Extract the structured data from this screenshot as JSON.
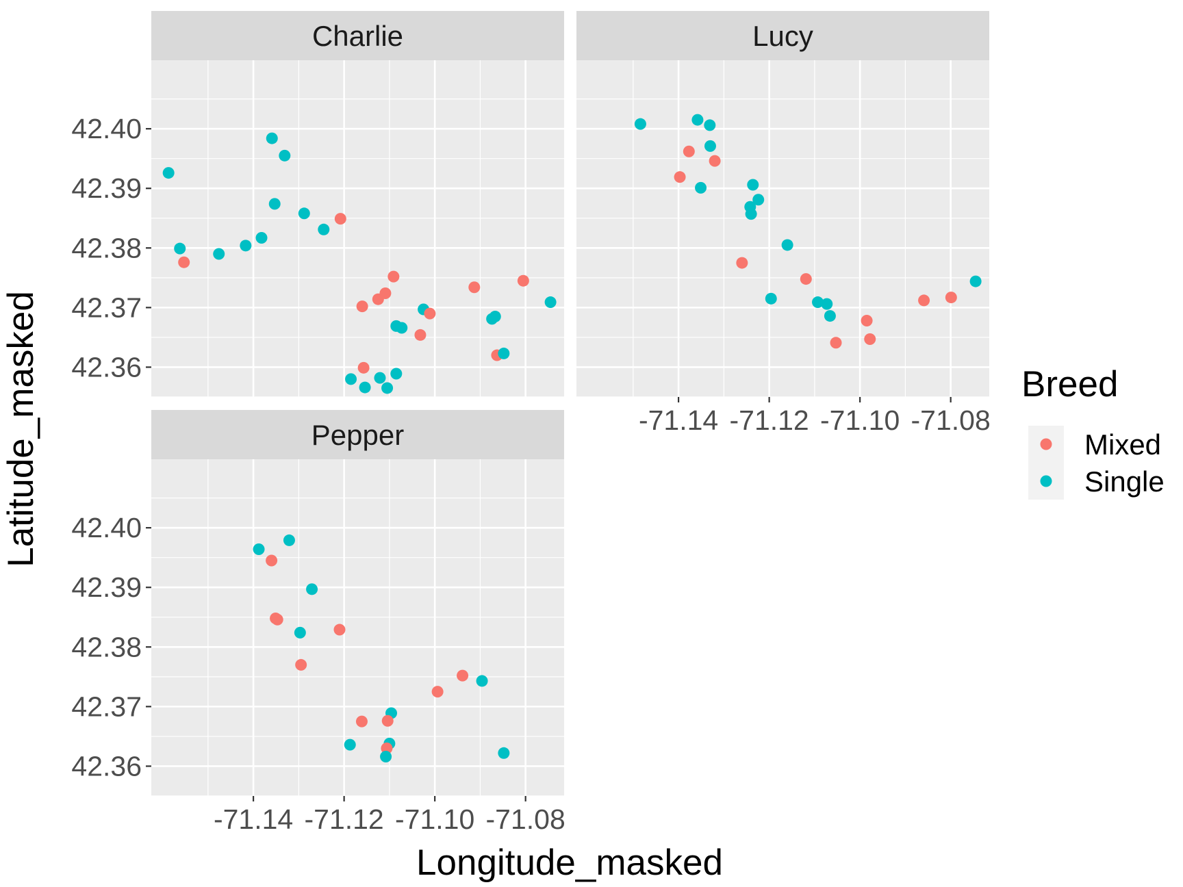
{
  "chart_data": {
    "type": "scatter",
    "xlabel": "Longitude_masked",
    "ylabel": "Latitude_masked",
    "xlim": [
      -71.1625,
      -71.0715
    ],
    "ylim": [
      42.355,
      42.4115
    ],
    "x_ticks": [
      -71.14,
      -71.12,
      -71.1,
      -71.08
    ],
    "x_tick_labels": [
      "-71.14",
      "-71.12",
      "-71.10",
      "-71.08"
    ],
    "y_ticks": [
      42.36,
      42.37,
      42.38,
      42.39,
      42.4
    ],
    "y_tick_labels": [
      "42.36",
      "42.37",
      "42.38",
      "42.39",
      "42.40"
    ],
    "grid": true,
    "legend": {
      "title": "Breed",
      "position": "right",
      "entries": [
        {
          "label": "Mixed",
          "color": "#F8766D"
        },
        {
          "label": "Single",
          "color": "#00BFC4"
        }
      ]
    },
    "panels": [
      {
        "name": "Charlie",
        "points": [
          {
            "x": -71.1587,
            "y": 42.3926,
            "breed": "Single"
          },
          {
            "x": -71.1562,
            "y": 42.3799,
            "breed": "Single"
          },
          {
            "x": -71.1553,
            "y": 42.3776,
            "breed": "Mixed"
          },
          {
            "x": -71.1476,
            "y": 42.379,
            "breed": "Single"
          },
          {
            "x": -71.1417,
            "y": 42.3804,
            "breed": "Single"
          },
          {
            "x": -71.1382,
            "y": 42.3817,
            "breed": "Single"
          },
          {
            "x": -71.1359,
            "y": 42.3984,
            "breed": "Single"
          },
          {
            "x": -71.1353,
            "y": 42.3874,
            "breed": "Single"
          },
          {
            "x": -71.1331,
            "y": 42.3955,
            "breed": "Single"
          },
          {
            "x": -71.1288,
            "y": 42.3858,
            "breed": "Single"
          },
          {
            "x": -71.1245,
            "y": 42.3831,
            "breed": "Single"
          },
          {
            "x": -71.1208,
            "y": 42.3849,
            "breed": "Mixed"
          },
          {
            "x": -71.116,
            "y": 42.3702,
            "breed": "Mixed"
          },
          {
            "x": -71.1157,
            "y": 42.3599,
            "breed": "Mixed"
          },
          {
            "x": -71.1185,
            "y": 42.358,
            "breed": "Single"
          },
          {
            "x": -71.1154,
            "y": 42.3566,
            "breed": "Single"
          },
          {
            "x": -71.1125,
            "y": 42.3714,
            "breed": "Mixed"
          },
          {
            "x": -71.1109,
            "y": 42.3724,
            "breed": "Mixed"
          },
          {
            "x": -71.1091,
            "y": 42.3752,
            "breed": "Mixed"
          },
          {
            "x": -71.1121,
            "y": 42.3582,
            "breed": "Single"
          },
          {
            "x": -71.1105,
            "y": 42.3565,
            "breed": "Single"
          },
          {
            "x": -71.1085,
            "y": 42.3589,
            "breed": "Single"
          },
          {
            "x": -71.1085,
            "y": 42.3669,
            "breed": "Single"
          },
          {
            "x": -71.1073,
            "y": 42.3666,
            "breed": "Single"
          },
          {
            "x": -71.1032,
            "y": 42.3654,
            "breed": "Mixed"
          },
          {
            "x": -71.1025,
            "y": 42.3697,
            "breed": "Single"
          },
          {
            "x": -71.1011,
            "y": 42.369,
            "breed": "Mixed"
          },
          {
            "x": -71.0913,
            "y": 42.3734,
            "breed": "Mixed"
          },
          {
            "x": -71.0874,
            "y": 42.3681,
            "breed": "Single"
          },
          {
            "x": -71.0867,
            "y": 42.3685,
            "breed": "Single"
          },
          {
            "x": -71.0863,
            "y": 42.362,
            "breed": "Mixed"
          },
          {
            "x": -71.0848,
            "y": 42.3623,
            "breed": "Single"
          },
          {
            "x": -71.0805,
            "y": 42.3745,
            "breed": "Mixed"
          },
          {
            "x": -71.0745,
            "y": 42.3709,
            "breed": "Single"
          }
        ]
      },
      {
        "name": "Lucy",
        "points": [
          {
            "x": -71.1484,
            "y": 42.4008,
            "breed": "Single"
          },
          {
            "x": -71.1358,
            "y": 42.4015,
            "breed": "Single"
          },
          {
            "x": -71.1331,
            "y": 42.4006,
            "breed": "Single"
          },
          {
            "x": -71.133,
            "y": 42.3971,
            "breed": "Single"
          },
          {
            "x": -71.1377,
            "y": 42.3962,
            "breed": "Mixed"
          },
          {
            "x": -71.132,
            "y": 42.3946,
            "breed": "Mixed"
          },
          {
            "x": -71.1397,
            "y": 42.3919,
            "breed": "Mixed"
          },
          {
            "x": -71.1351,
            "y": 42.3901,
            "breed": "Single"
          },
          {
            "x": -71.1236,
            "y": 42.3906,
            "breed": "Single"
          },
          {
            "x": -71.1224,
            "y": 42.3881,
            "breed": "Single"
          },
          {
            "x": -71.1242,
            "y": 42.3869,
            "breed": "Single"
          },
          {
            "x": -71.124,
            "y": 42.3857,
            "breed": "Single"
          },
          {
            "x": -71.116,
            "y": 42.3805,
            "breed": "Single"
          },
          {
            "x": -71.126,
            "y": 42.3775,
            "breed": "Mixed"
          },
          {
            "x": -71.1119,
            "y": 42.3748,
            "breed": "Mixed"
          },
          {
            "x": -71.1196,
            "y": 42.3715,
            "breed": "Single"
          },
          {
            "x": -71.1093,
            "y": 42.3709,
            "breed": "Single"
          },
          {
            "x": -71.1073,
            "y": 42.3706,
            "breed": "Single"
          },
          {
            "x": -71.1066,
            "y": 42.3686,
            "breed": "Single"
          },
          {
            "x": -71.0985,
            "y": 42.3678,
            "breed": "Mixed"
          },
          {
            "x": -71.1053,
            "y": 42.3641,
            "breed": "Mixed"
          },
          {
            "x": -71.0978,
            "y": 42.3647,
            "breed": "Mixed"
          },
          {
            "x": -71.0859,
            "y": 42.3712,
            "breed": "Mixed"
          },
          {
            "x": -71.0799,
            "y": 42.3717,
            "breed": "Mixed"
          },
          {
            "x": -71.0745,
            "y": 42.3744,
            "breed": "Single"
          }
        ]
      },
      {
        "name": "Pepper",
        "points": [
          {
            "x": -71.1388,
            "y": 42.3964,
            "breed": "Single"
          },
          {
            "x": -71.1321,
            "y": 42.3979,
            "breed": "Single"
          },
          {
            "x": -71.136,
            "y": 42.3945,
            "breed": "Mixed"
          },
          {
            "x": -71.1271,
            "y": 42.3897,
            "breed": "Single"
          },
          {
            "x": -71.1351,
            "y": 42.3848,
            "breed": "Mixed"
          },
          {
            "x": -71.1347,
            "y": 42.3846,
            "breed": "Mixed"
          },
          {
            "x": -71.1297,
            "y": 42.3824,
            "breed": "Single"
          },
          {
            "x": -71.121,
            "y": 42.3829,
            "breed": "Mixed"
          },
          {
            "x": -71.1295,
            "y": 42.377,
            "breed": "Mixed"
          },
          {
            "x": -71.0939,
            "y": 42.3752,
            "breed": "Mixed"
          },
          {
            "x": -71.0896,
            "y": 42.3743,
            "breed": "Single"
          },
          {
            "x": -71.0994,
            "y": 42.3725,
            "breed": "Mixed"
          },
          {
            "x": -71.1161,
            "y": 42.3675,
            "breed": "Mixed"
          },
          {
            "x": -71.1096,
            "y": 42.3689,
            "breed": "Single"
          },
          {
            "x": -71.1104,
            "y": 42.3676,
            "breed": "Mixed"
          },
          {
            "x": -71.1187,
            "y": 42.3636,
            "breed": "Single"
          },
          {
            "x": -71.11,
            "y": 42.3638,
            "breed": "Single"
          },
          {
            "x": -71.1106,
            "y": 42.363,
            "breed": "Mixed"
          },
          {
            "x": -71.1108,
            "y": 42.3616,
            "breed": "Single"
          },
          {
            "x": -71.0848,
            "y": 42.3622,
            "breed": "Single"
          }
        ]
      }
    ]
  }
}
